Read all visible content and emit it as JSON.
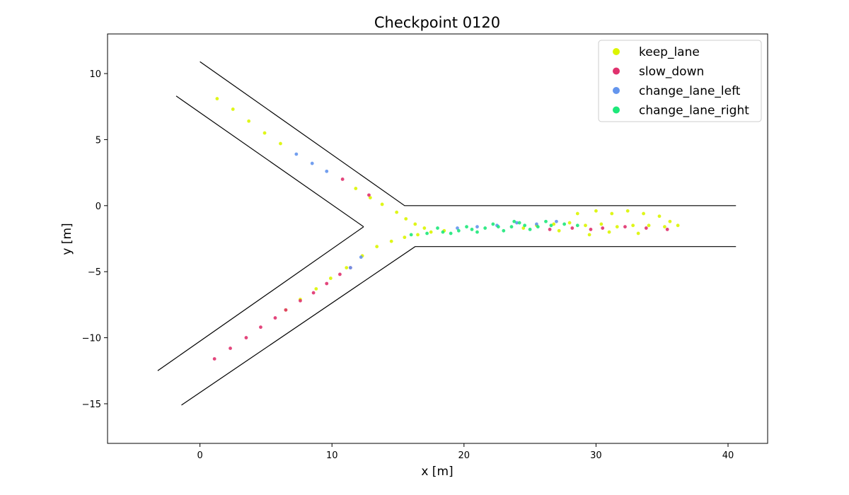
{
  "chart_data": {
    "type": "scatter",
    "title": "Checkpoint 0120",
    "xlabel": "x [m]",
    "ylabel": "y [m]",
    "xlim": [
      -7,
      43
    ],
    "ylim": [
      -18,
      13
    ],
    "xticks": [
      0,
      10,
      20,
      30,
      40
    ],
    "yticks": [
      10,
      5,
      0,
      -5,
      -10,
      -15
    ],
    "legend_position": "upper right",
    "grid": false,
    "road_boundaries": [
      {
        "name": "upper-outer",
        "points": [
          [
            0,
            10.9
          ],
          [
            15.5,
            0
          ],
          [
            40.6,
            0
          ]
        ]
      },
      {
        "name": "upper-inner",
        "points": [
          [
            -1.8,
            8.3
          ],
          [
            12.4,
            -1.6
          ]
        ]
      },
      {
        "name": "lower-inner",
        "points": [
          [
            -3.2,
            -12.5
          ],
          [
            12.4,
            -1.6
          ]
        ]
      },
      {
        "name": "lower-outer",
        "points": [
          [
            -1.4,
            -15.1
          ],
          [
            16.3,
            -3.1
          ],
          [
            40.6,
            -3.1
          ]
        ]
      }
    ],
    "series": [
      {
        "name": "keep_lane",
        "color": "#dcf500",
        "points": [
          [
            1.3,
            8.1
          ],
          [
            2.5,
            7.3
          ],
          [
            3.7,
            6.4
          ],
          [
            4.9,
            5.5
          ],
          [
            6.1,
            4.7
          ],
          [
            11.8,
            1.3
          ],
          [
            12.9,
            0.6
          ],
          [
            13.8,
            0.1
          ],
          [
            14.9,
            -0.5
          ],
          [
            15.6,
            -1.0
          ],
          [
            16.3,
            -1.4
          ],
          [
            17.0,
            -1.7
          ],
          [
            6.5,
            -7.9
          ],
          [
            7.6,
            -7.1
          ],
          [
            8.8,
            -6.3
          ],
          [
            9.9,
            -5.5
          ],
          [
            11.1,
            -4.7
          ],
          [
            12.3,
            -3.8
          ],
          [
            13.4,
            -3.1
          ],
          [
            14.5,
            -2.7
          ],
          [
            15.5,
            -2.4
          ],
          [
            16.5,
            -2.2
          ],
          [
            17.5,
            -2.0
          ],
          [
            18.5,
            -1.9
          ],
          [
            24.5,
            -1.7
          ],
          [
            25.5,
            -1.5
          ],
          [
            26.8,
            -1.4
          ],
          [
            28.0,
            -1.3
          ],
          [
            29.2,
            -1.5
          ],
          [
            30.4,
            -1.4
          ],
          [
            31.6,
            -1.6
          ],
          [
            32.8,
            -1.5
          ],
          [
            34.0,
            -1.5
          ],
          [
            35.2,
            -1.6
          ],
          [
            36.2,
            -1.5
          ],
          [
            28.6,
            -0.6
          ],
          [
            30.0,
            -0.4
          ],
          [
            31.2,
            -0.6
          ],
          [
            32.4,
            -0.4
          ],
          [
            33.6,
            -0.6
          ],
          [
            34.8,
            -0.8
          ],
          [
            29.5,
            -2.2
          ],
          [
            31.0,
            -2.0
          ],
          [
            33.2,
            -2.1
          ],
          [
            35.6,
            -1.2
          ],
          [
            27.2,
            -1.9
          ]
        ]
      },
      {
        "name": "slow_down",
        "color": "#e0326e",
        "points": [
          [
            10.8,
            2.0
          ],
          [
            12.8,
            0.8
          ],
          [
            1.1,
            -11.6
          ],
          [
            2.3,
            -10.8
          ],
          [
            3.5,
            -10.0
          ],
          [
            4.6,
            -9.2
          ],
          [
            5.7,
            -8.5
          ],
          [
            6.5,
            -7.9
          ],
          [
            7.6,
            -7.2
          ],
          [
            8.6,
            -6.6
          ],
          [
            9.6,
            -5.9
          ],
          [
            10.6,
            -5.2
          ],
          [
            11.4,
            -4.7
          ],
          [
            26.5,
            -1.8
          ],
          [
            28.2,
            -1.7
          ],
          [
            30.5,
            -1.7
          ],
          [
            32.2,
            -1.6
          ],
          [
            33.8,
            -1.7
          ],
          [
            35.4,
            -1.8
          ],
          [
            29.6,
            -1.8
          ]
        ]
      },
      {
        "name": "change_lane_left",
        "color": "#6495ed",
        "points": [
          [
            7.3,
            3.9
          ],
          [
            8.5,
            3.2
          ],
          [
            9.6,
            2.6
          ],
          [
            11.4,
            -4.7
          ],
          [
            12.2,
            -3.9
          ],
          [
            21.0,
            -1.6
          ],
          [
            22.5,
            -1.5
          ],
          [
            24.0,
            -1.3
          ],
          [
            25.5,
            -1.4
          ],
          [
            27.0,
            -1.2
          ],
          [
            19.5,
            -1.7
          ]
        ]
      },
      {
        "name": "change_lane_right",
        "color": "#1de87a",
        "points": [
          [
            16.0,
            -2.2
          ],
          [
            17.2,
            -2.1
          ],
          [
            18.4,
            -2.0
          ],
          [
            19.6,
            -1.9
          ],
          [
            20.6,
            -1.8
          ],
          [
            21.6,
            -1.7
          ],
          [
            22.6,
            -1.6
          ],
          [
            23.6,
            -1.6
          ],
          [
            24.6,
            -1.5
          ],
          [
            25.6,
            -1.6
          ],
          [
            26.6,
            -1.5
          ],
          [
            27.6,
            -1.4
          ],
          [
            28.6,
            -1.5
          ],
          [
            21.0,
            -2.0
          ],
          [
            23.0,
            -1.9
          ],
          [
            25.0,
            -1.8
          ],
          [
            20.2,
            -1.6
          ],
          [
            22.2,
            -1.4
          ],
          [
            24.2,
            -1.3
          ],
          [
            26.2,
            -1.2
          ],
          [
            18.0,
            -1.7
          ],
          [
            19.0,
            -2.1
          ],
          [
            23.8,
            -1.2
          ]
        ]
      }
    ]
  }
}
